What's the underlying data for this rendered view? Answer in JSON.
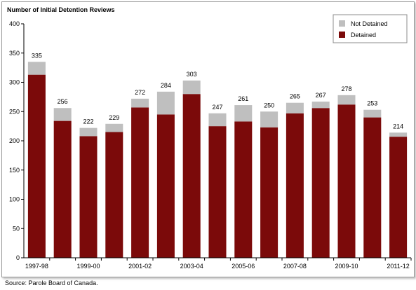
{
  "chart_data": {
    "type": "bar",
    "stacked": true,
    "title": "Number of Initial Detention Reviews",
    "categories": [
      "1997-98",
      "1998-99",
      "1999-00",
      "2000-01",
      "2001-02",
      "2002-03",
      "2003-04",
      "2004-05",
      "2005-06",
      "2006-07",
      "2007-08",
      "2008-09",
      "2009-10",
      "2010-11",
      "2011-12"
    ],
    "x_tick_labels": [
      "1997-98",
      "",
      "1999-00",
      "",
      "2001-02",
      "",
      "2003-04",
      "",
      "2005-06",
      "",
      "2007-08",
      "",
      "2009-10",
      "",
      "2011-12"
    ],
    "series": [
      {
        "name": "Detained",
        "color": "#7b0a0a",
        "values": [
          313,
          234,
          208,
          215,
          257,
          245,
          280,
          225,
          233,
          223,
          247,
          256,
          262,
          240,
          207
        ]
      },
      {
        "name": "Not Detained",
        "color": "#bfbfbf",
        "values": [
          22,
          22,
          14,
          14,
          15,
          39,
          23,
          22,
          28,
          27,
          18,
          11,
          16,
          13,
          7
        ]
      }
    ],
    "totals": [
      335,
      256,
      222,
      229,
      272,
      284,
      303,
      247,
      261,
      250,
      265,
      267,
      278,
      253,
      214
    ],
    "ylim": [
      0,
      400
    ],
    "yticks": [
      0,
      50,
      100,
      150,
      200,
      250,
      300,
      350,
      400
    ],
    "grid": false,
    "legend_position": "top-right"
  },
  "source": "Source:  Parole Board of Canada."
}
